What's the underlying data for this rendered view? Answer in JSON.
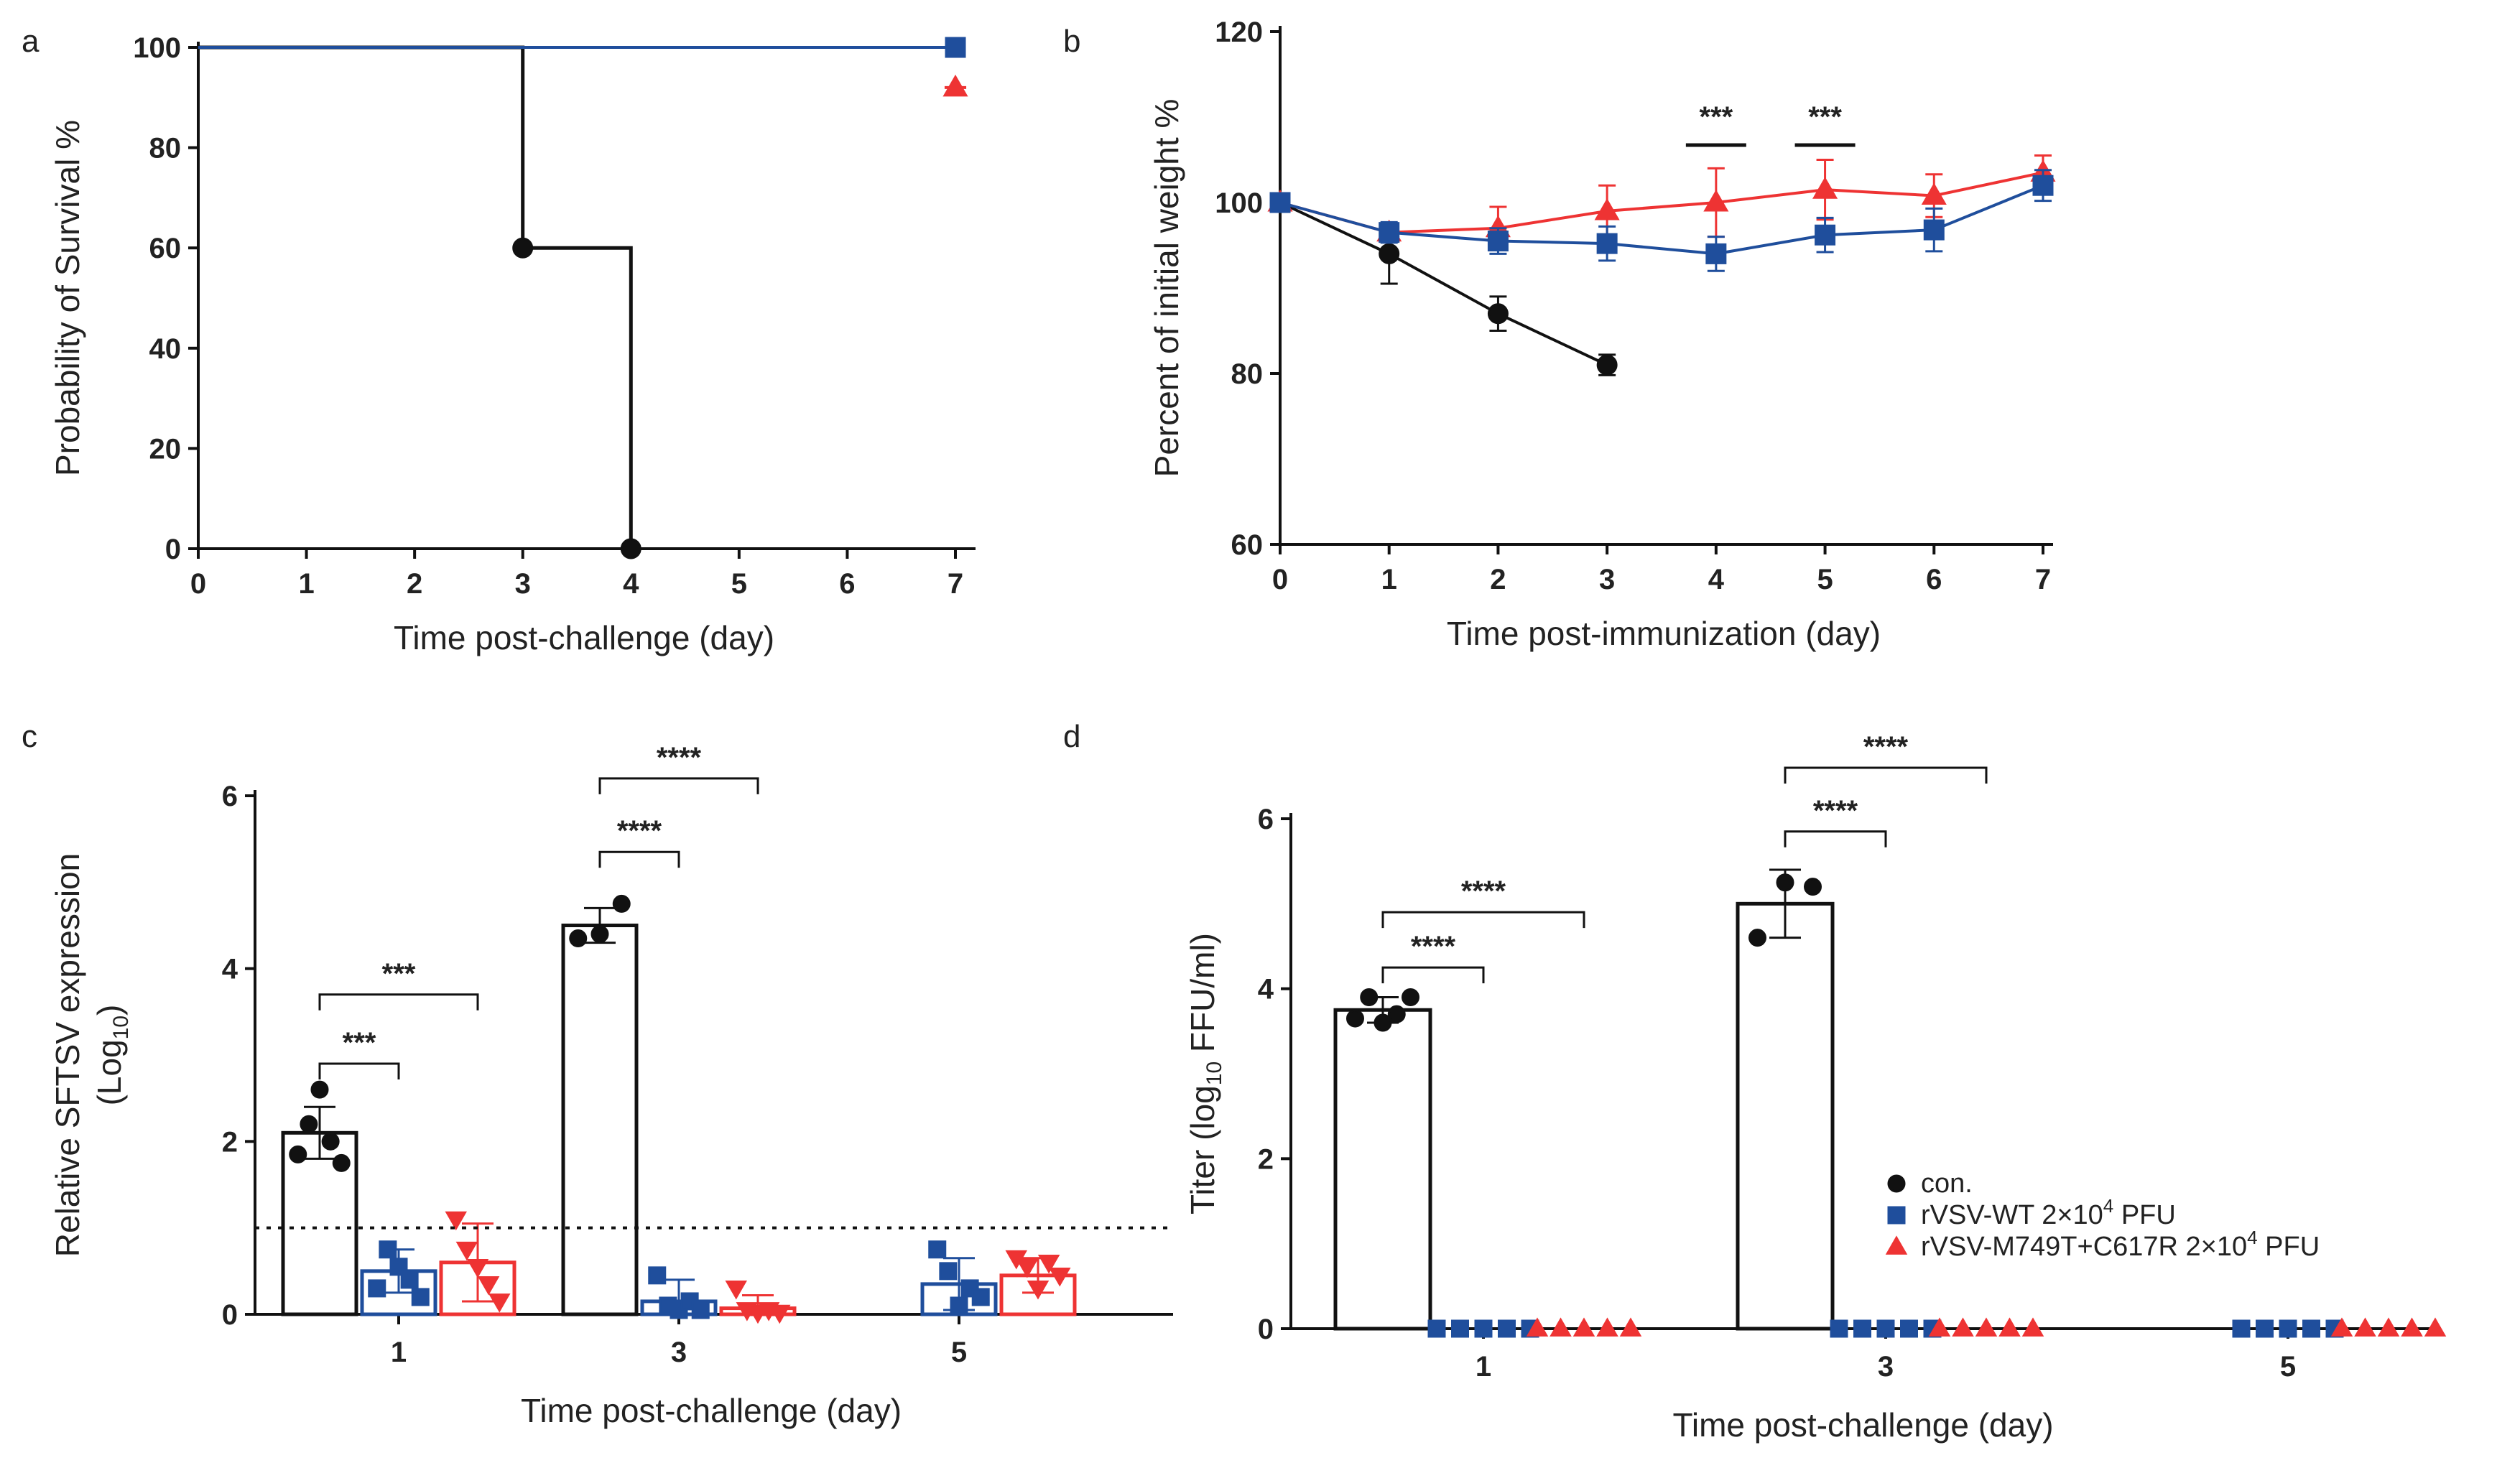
{
  "colors": {
    "con": "#111111",
    "wt": "#1f4e9c",
    "mut": "#ee3333"
  },
  "chart_data": [
    {
      "id": "a",
      "panel": "a",
      "type": "line",
      "subtype": "step-survival",
      "xlabel": "Time post-challenge (day)",
      "ylabel": "Probability of Survival %",
      "xlim": [
        0,
        7
      ],
      "ylim": [
        0,
        100
      ],
      "xticks": [
        "0",
        "1",
        "2",
        "3",
        "4",
        "5",
        "6",
        "7"
      ],
      "yticks": [
        "0",
        "20",
        "40",
        "60",
        "80",
        "100"
      ],
      "series": [
        {
          "name": "con.",
          "color": "con",
          "marker": "circle",
          "steps": [
            [
              0,
              100
            ],
            [
              3,
              100
            ],
            [
              3,
              60
            ],
            [
              4,
              60
            ],
            [
              4,
              0
            ]
          ],
          "points": [
            [
              3,
              60
            ],
            [
              4,
              0
            ]
          ]
        },
        {
          "name": "rVSV-WT 2×10^4 PFU",
          "color": "wt",
          "marker": "square",
          "steps": [
            [
              0,
              100
            ],
            [
              7,
              100
            ]
          ],
          "points": [
            [
              7,
              100
            ]
          ]
        },
        {
          "name": "rVSV-M749T+C617R 2×10^4 PFU",
          "color": "mut",
          "marker": "triangle",
          "steps": [
            [
              6.9,
              92
            ],
            [
              7.1,
              92
            ]
          ],
          "points": [
            [
              7,
              92
            ]
          ]
        }
      ]
    },
    {
      "id": "b",
      "panel": "b",
      "type": "line",
      "xlabel": "Time post-immunization (day)",
      "ylabel": "Percent of initial weight %",
      "xlim": [
        0,
        7
      ],
      "ylim": [
        60,
        120
      ],
      "xticks": [
        "0",
        "1",
        "2",
        "3",
        "4",
        "5",
        "6",
        "7"
      ],
      "yticks": [
        "60",
        "80",
        "100",
        "120"
      ],
      "series": [
        {
          "name": "con.",
          "color": "con",
          "marker": "circle",
          "x": [
            0,
            1,
            2,
            3
          ],
          "y": [
            100,
            94,
            87,
            81
          ],
          "err": [
            0,
            3.5,
            2,
            1.2
          ]
        },
        {
          "name": "rVSV-WT 2×10^4 PFU",
          "color": "wt",
          "marker": "square",
          "x": [
            0,
            1,
            2,
            3,
            4,
            5,
            6,
            7
          ],
          "y": [
            100,
            96.5,
            95.5,
            95.2,
            94,
            96.2,
            96.8,
            102
          ],
          "err": [
            0,
            1.2,
            1.5,
            2,
            2,
            2,
            2.5,
            1.8
          ]
        },
        {
          "name": "rVSV-M749T+C617R 2×10^4 PFU",
          "color": "mut",
          "marker": "triangle",
          "x": [
            0,
            1,
            2,
            3,
            4,
            5,
            6,
            7
          ],
          "y": [
            100,
            96.5,
            97,
            99,
            100,
            101.5,
            100.8,
            103.5
          ],
          "err": [
            0,
            1,
            2.5,
            3,
            4,
            3.5,
            2.5,
            2
          ]
        }
      ],
      "annotations": [
        {
          "x": 4,
          "label": "***"
        },
        {
          "x": 5,
          "label": "***"
        }
      ]
    },
    {
      "id": "c",
      "panel": "c",
      "type": "bar",
      "xlabel": "Time post-challenge (day)",
      "ylabel": "Relative SFTSV expression",
      "ylabel_line2": "(Log",
      "ylabel_sub": "10",
      "ylabel_close": ")",
      "categories": [
        "1",
        "3",
        "5"
      ],
      "ylim": [
        0,
        6
      ],
      "yticks": [
        "0",
        "2",
        "4",
        "6"
      ],
      "threshold": 1,
      "series": [
        {
          "name": "con.",
          "color": "con",
          "values": [
            2.1,
            4.5,
            null
          ],
          "err": [
            0.3,
            0.2,
            null
          ],
          "points": [
            [
              1.85,
              2.2,
              2.6,
              2.0,
              1.75
            ],
            [
              4.35,
              4.4,
              4.75
            ],
            []
          ]
        },
        {
          "name": "rVSV-WT 2×10^4 PFU",
          "color": "wt",
          "values": [
            0.5,
            0.15,
            0.35
          ],
          "err": [
            0.25,
            0.25,
            0.3
          ],
          "points": [
            [
              0.3,
              0.75,
              0.55,
              0.4,
              0.2
            ],
            [
              0.45,
              0.1,
              0.05,
              0.15,
              0.05
            ],
            [
              0.75,
              0.5,
              0.1,
              0.3,
              0.2
            ]
          ]
        },
        {
          "name": "rVSV-M749T+C617R 2×10^4 PFU",
          "color": "mut",
          "values": [
            0.6,
            0.07,
            0.45
          ],
          "err": [
            0.45,
            0.15,
            0.2
          ],
          "points": [
            [
              1.1,
              0.75,
              0.55,
              0.35,
              0.15
            ],
            [
              0.3,
              0.05,
              0.02,
              0.05,
              0.02
            ],
            [
              0.65,
              0.55,
              0.3,
              0.6,
              0.45
            ]
          ]
        }
      ],
      "brackets": [
        {
          "group": 0,
          "from": 0,
          "to": 1,
          "level": 2.9,
          "label": "***"
        },
        {
          "group": 0,
          "from": 0,
          "to": 2,
          "level": 3.7,
          "label": "***"
        },
        {
          "group": 1,
          "from": 0,
          "to": 1,
          "level": 5.35,
          "label": "****"
        },
        {
          "group": 1,
          "from": 0,
          "to": 2,
          "level": 6.2,
          "label": "****"
        }
      ]
    },
    {
      "id": "d",
      "panel": "d",
      "type": "bar",
      "xlabel": "Time post-challenge (day)",
      "ylabel": "Titer (log",
      "ylabel_sub": "10",
      "ylabel_tail": " FFU/ml)",
      "categories": [
        "1",
        "3",
        "5"
      ],
      "ylim": [
        0,
        6
      ],
      "yticks": [
        "0",
        "2",
        "4",
        "6"
      ],
      "series": [
        {
          "name": "con.",
          "color": "con",
          "values": [
            3.75,
            5.0,
            null
          ],
          "err": [
            0.15,
            0.4,
            null
          ],
          "points": [
            [
              3.65,
              3.9,
              3.6,
              3.7,
              3.9
            ],
            [
              4.6,
              5.25,
              5.2
            ],
            []
          ]
        },
        {
          "name": "rVSV-WT 2×10^4 PFU",
          "color": "wt",
          "values": [
            0,
            0,
            0
          ],
          "err": [
            0,
            0,
            0
          ],
          "points": [
            [
              0,
              0,
              0,
              0,
              0
            ],
            [
              0,
              0,
              0,
              0,
              0
            ],
            [
              0,
              0,
              0,
              0,
              0
            ]
          ]
        },
        {
          "name": "rVSV-M749T+C617R 2×10^4 PFU",
          "color": "mut",
          "values": [
            0,
            0,
            0
          ],
          "err": [
            0,
            0,
            0
          ],
          "points": [
            [
              0,
              0,
              0,
              0,
              0
            ],
            [
              0,
              0,
              0,
              0,
              0
            ],
            [
              0,
              0,
              0,
              0,
              0
            ]
          ]
        }
      ],
      "brackets": [
        {
          "group": 0,
          "from": 0,
          "to": 1,
          "level": 4.25,
          "label": "****"
        },
        {
          "group": 0,
          "from": 0,
          "to": 2,
          "level": 4.9,
          "label": "****"
        },
        {
          "group": 1,
          "from": 0,
          "to": 1,
          "level": 5.85,
          "label": "****"
        },
        {
          "group": 1,
          "from": 0,
          "to": 2,
          "level": 6.6,
          "label": "****"
        }
      ],
      "legend": {
        "position": "bottom-right",
        "items": [
          {
            "color": "con",
            "marker": "circle",
            "label": "con."
          },
          {
            "color": "wt",
            "marker": "square",
            "label": "rVSV-WT 2×10",
            "sup": "4",
            "suffix": " PFU"
          },
          {
            "color": "mut",
            "marker": "triangle",
            "label": "rVSV-M749T+C617R 2×10",
            "sup": "4",
            "suffix": " PFU"
          }
        ]
      }
    }
  ]
}
